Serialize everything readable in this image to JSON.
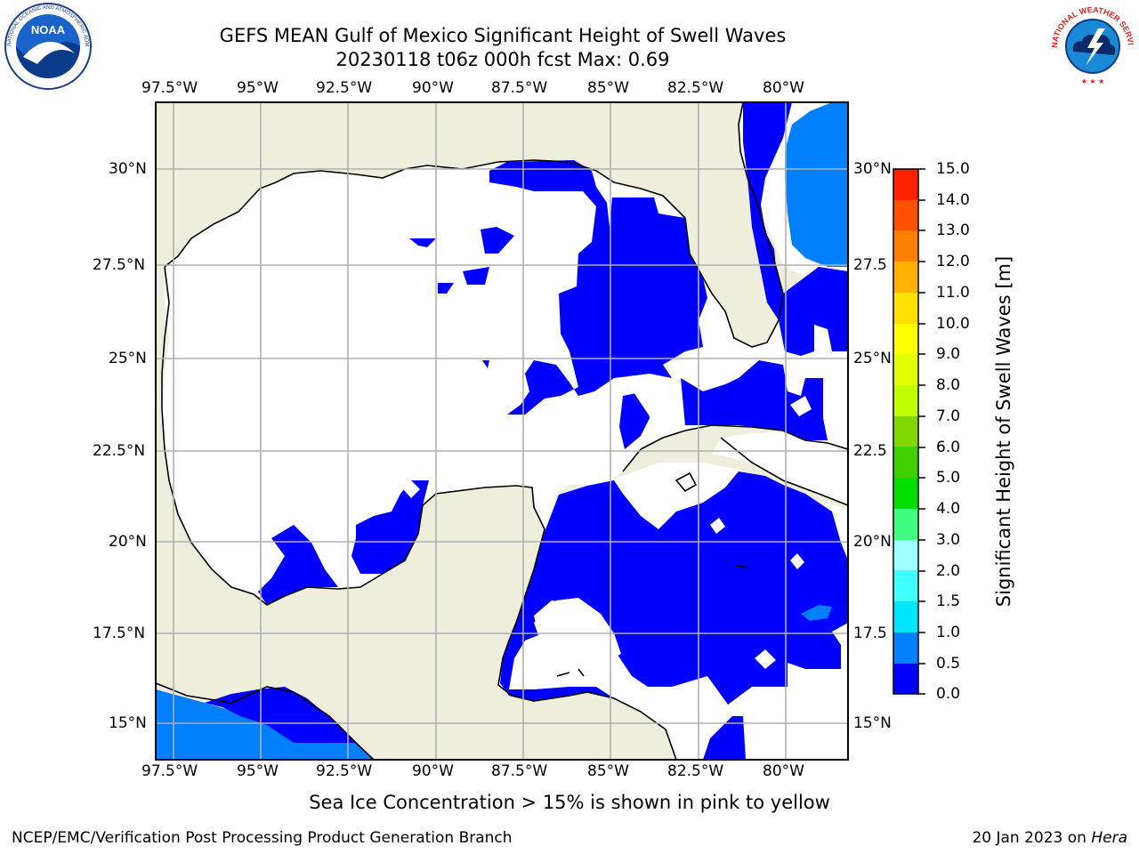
{
  "header": {
    "title_line1": "GEFS MEAN Gulf of Mexico Significant Height of Swell Waves",
    "title_line2": "20230118 t06z 000h fcst   Max: 0.69"
  },
  "logos": {
    "left": {
      "name": "noaa-logo",
      "text": "NOAA"
    },
    "right": {
      "name": "nws-logo",
      "text": "NATIONAL WEATHER SERVICE"
    }
  },
  "map": {
    "lon_ticks_top": [
      "97.5°W",
      "95°W",
      "92.5°W",
      "90°W",
      "87.5°W",
      "85°W",
      "82.5°W",
      "80°W"
    ],
    "lon_ticks_bottom": [
      "97.5°W",
      "95°W",
      "92.5°W",
      "90°W",
      "87.5°W",
      "85°W",
      "82.5°W",
      "80°W"
    ],
    "lat_ticks_left": [
      "30°N",
      "27.5°N",
      "25°N",
      "22.5°N",
      "20°N",
      "17.5°N",
      "15°N"
    ],
    "lat_ticks_right": [
      "30°N",
      "27.5",
      "25°N",
      "22.5",
      "20°N",
      "17.5",
      "15°N"
    ],
    "lon_values": [
      -97.5,
      -95,
      -92.5,
      -90,
      -87.5,
      -85,
      -82.5,
      -80
    ],
    "lat_values": [
      30,
      27.5,
      25,
      22.5,
      20,
      17.5,
      15
    ],
    "colors": {
      "land": "#efeedc",
      "ocean_low": "#0000ff",
      "ocean_mid": "#0080ff",
      "grid": "#b0b0b0"
    }
  },
  "colorbar": {
    "label": "Significant Height of Swell Waves [m]",
    "ticks": [
      "15.0",
      "14.0",
      "13.0",
      "12.0",
      "11.0",
      "10.0",
      "9.0",
      "8.0",
      "7.0",
      "6.0",
      "5.0",
      "4.0",
      "3.0",
      "2.0",
      "1.5",
      "1.0",
      "0.5",
      "0.0"
    ],
    "colors_bottom_to_top": [
      "#0000ff",
      "#0080ff",
      "#00e6ff",
      "#40ffff",
      "#a0ffff",
      "#40ff80",
      "#00e000",
      "#40d000",
      "#80d800",
      "#c0ff00",
      "#e0ff00",
      "#ffff00",
      "#ffe000",
      "#ffb000",
      "#ff8000",
      "#ff5000",
      "#ff2000"
    ]
  },
  "notes": {
    "ice_note": "Sea Ice Concentration > 15% is shown in pink to yellow"
  },
  "footer": {
    "left": "NCEP/EMC/Verification Post Processing Product Generation Branch",
    "right_date": "20 Jan 2023 on ",
    "right_host": "Hera"
  }
}
